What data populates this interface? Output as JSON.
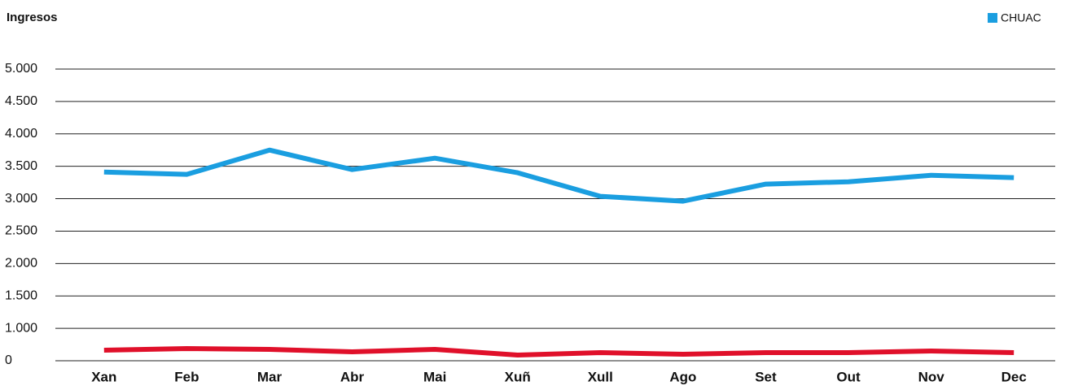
{
  "chart_data": {
    "type": "line",
    "title": "Ingresos",
    "categories": [
      "Xan",
      "Feb",
      "Mar",
      "Abr",
      "Mai",
      "Xuñ",
      "Xull",
      "Ago",
      "Set",
      "Out",
      "Nov",
      "Dec"
    ],
    "series": [
      {
        "name": "CHUAC",
        "color": "#1a9ee0",
        "values": [
          3412,
          3375,
          3750,
          3450,
          3625,
          3400,
          3037,
          2962,
          3225,
          3262,
          3362,
          3325
        ]
      },
      {
        "color": "#e0102a",
        "values": [
          325,
          375,
          350,
          275,
          350,
          175,
          250,
          200,
          250,
          250,
          300,
          250
        ]
      }
    ],
    "ylim": [
      0,
      5000
    ],
    "yticks": [
      0,
      {
        "value": 1000,
        "label": "1.000"
      },
      {
        "value": 1500,
        "label": "1.500"
      },
      {
        "value": 2000,
        "label": "2.000"
      },
      {
        "value": 2500,
        "label": "2.500"
      },
      {
        "value": 3000,
        "label": "3.000"
      },
      {
        "value": 3500,
        "label": "3.500"
      },
      {
        "value": 4000,
        "label": "4.000"
      },
      {
        "value": 4500,
        "label": "4.500"
      },
      {
        "value": 5000,
        "label": "5.000"
      }
    ],
    "grid": true,
    "legend": "top-right"
  }
}
